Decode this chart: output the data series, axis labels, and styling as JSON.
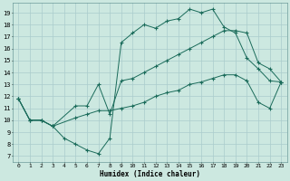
{
  "xlabel": "Humidex (Indice chaleur)",
  "xlim": [
    -0.5,
    23.5
  ],
  "ylim": [
    6.5,
    19.8
  ],
  "yticks": [
    7,
    8,
    9,
    10,
    11,
    12,
    13,
    14,
    15,
    16,
    17,
    18,
    19
  ],
  "xticks": [
    0,
    1,
    2,
    3,
    4,
    5,
    6,
    7,
    8,
    9,
    10,
    11,
    12,
    13,
    14,
    15,
    16,
    17,
    18,
    19,
    20,
    21,
    22,
    23
  ],
  "bg_color": "#cce8e0",
  "plot_bg_color": "#cce8e0",
  "line_color": "#1a6b5a",
  "grid_color": "#aacccc",
  "line1_x": [
    0,
    1,
    2,
    3,
    4,
    5,
    6,
    7,
    8,
    9,
    10,
    11,
    12,
    13,
    14,
    15,
    16,
    17,
    18,
    19,
    20,
    21,
    22,
    23
  ],
  "line1_y": [
    11.8,
    10.0,
    10.0,
    9.5,
    8.5,
    8.0,
    7.5,
    7.2,
    8.5,
    16.5,
    17.3,
    18.0,
    17.7,
    18.3,
    18.5,
    19.3,
    19.0,
    19.3,
    17.8,
    17.3,
    15.2,
    14.3,
    13.3,
    13.2
  ],
  "line2_x": [
    0,
    1,
    2,
    3,
    5,
    6,
    7,
    8,
    9,
    10,
    11,
    12,
    13,
    14,
    15,
    16,
    17,
    18,
    19,
    20,
    21,
    22,
    23
  ],
  "line2_y": [
    11.8,
    10.0,
    10.0,
    9.5,
    11.2,
    11.2,
    13.0,
    10.5,
    13.3,
    13.5,
    14.0,
    14.5,
    15.0,
    15.5,
    16.0,
    16.5,
    17.0,
    17.5,
    17.5,
    17.3,
    14.8,
    14.3,
    13.2
  ],
  "line3_x": [
    0,
    1,
    2,
    3,
    5,
    6,
    7,
    8,
    9,
    10,
    11,
    12,
    13,
    14,
    15,
    16,
    17,
    18,
    19,
    20,
    21,
    22,
    23
  ],
  "line3_y": [
    11.8,
    10.0,
    10.0,
    9.5,
    10.2,
    10.5,
    10.8,
    10.8,
    11.0,
    11.2,
    11.5,
    12.0,
    12.3,
    12.5,
    13.0,
    13.2,
    13.5,
    13.8,
    13.8,
    13.3,
    11.5,
    11.0,
    13.2
  ]
}
